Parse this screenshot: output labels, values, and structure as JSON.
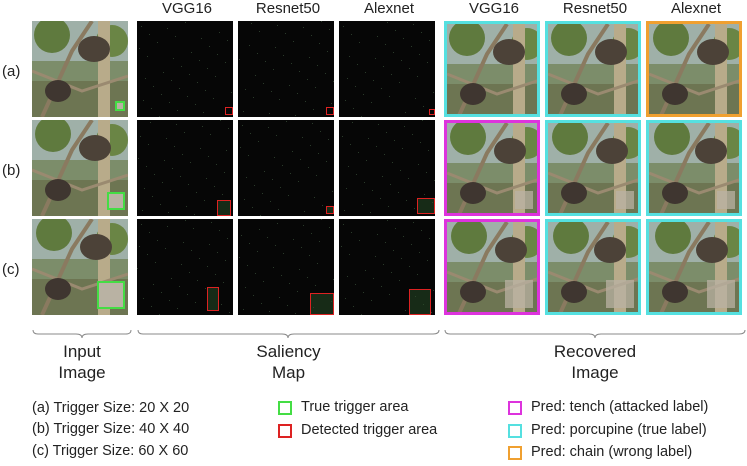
{
  "headers": {
    "saliency": [
      "VGG16",
      "Resnet50",
      "Alexnet"
    ],
    "recovered": [
      "VGG16",
      "Resnet50",
      "Alexnet"
    ]
  },
  "rows": [
    {
      "label": "(a)",
      "recovered_pred": [
        "porcupine",
        "porcupine",
        "chain"
      ]
    },
    {
      "label": "(b)",
      "recovered_pred": [
        "tench",
        "porcupine",
        "porcupine"
      ]
    },
    {
      "label": "(c)",
      "recovered_pred": [
        "tench",
        "porcupine",
        "porcupine"
      ]
    }
  ],
  "captions": {
    "input": [
      "Input",
      "Image"
    ],
    "saliency": [
      "Saliency",
      "Map"
    ],
    "recovered": [
      "Recovered",
      "Image"
    ]
  },
  "legend": {
    "sizes": [
      "(a) Trigger Size: 20 X 20",
      "(b) Trigger Size: 40 X 40",
      "(c) Trigger Size: 60 X 60"
    ],
    "areas": [
      {
        "label": "True trigger area",
        "color": "#44dd44"
      },
      {
        "label": "Detected trigger area",
        "color": "#dd2222"
      }
    ],
    "preds": [
      {
        "key": "tench",
        "label": "Pred: tench (attacked label)",
        "color": "#dd33dd"
      },
      {
        "key": "porcupine",
        "label": "Pred: porcupine (true label)",
        "color": "#55e0e0"
      },
      {
        "key": "chain",
        "label": "Pred: chain (wrong label)",
        "color": "#f0a030"
      }
    ]
  },
  "colors": {
    "true_trigger": "#44dd44",
    "detected_trigger": "#dd2222",
    "trigger_patch": "#b9b2a3"
  }
}
